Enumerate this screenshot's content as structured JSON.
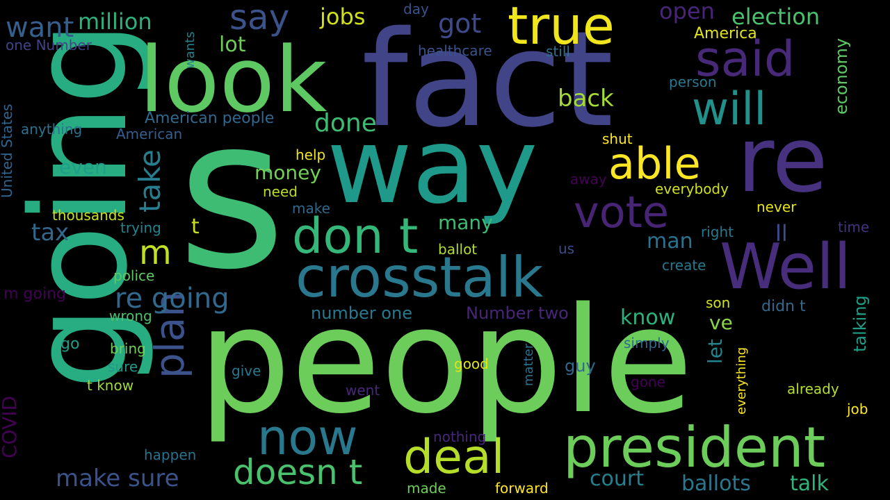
{
  "words": [
    {
      "text": "s",
      "color": "#3fbc73",
      "rotate": false
    },
    {
      "text": "people",
      "color": "#6ccd5a",
      "rotate": false
    },
    {
      "text": "going",
      "color": "#27ad81",
      "rotate": true
    },
    {
      "text": "fact",
      "color": "#414487",
      "rotate": false
    },
    {
      "text": "way",
      "color": "#1f9a8a",
      "rotate": false
    },
    {
      "text": "look",
      "color": "#5ec962",
      "rotate": false
    },
    {
      "text": "re",
      "color": "#46327e",
      "rotate": false
    },
    {
      "text": "Well",
      "color": "#472d7b",
      "rotate": false
    },
    {
      "text": "president",
      "color": "#6ccd5a",
      "rotate": false
    },
    {
      "text": "crosstalk",
      "color": "#2a788e",
      "rotate": false
    },
    {
      "text": "don t",
      "color": "#35b779",
      "rotate": false
    },
    {
      "text": "true",
      "color": "#f1e51d",
      "rotate": false
    },
    {
      "text": "said",
      "color": "#482878",
      "rotate": false
    },
    {
      "text": "vote",
      "color": "#482475",
      "rotate": false
    },
    {
      "text": "deal",
      "color": "#b5de2b",
      "rotate": false
    },
    {
      "text": "now",
      "color": "#2a788e",
      "rotate": false
    },
    {
      "text": "will",
      "color": "#21918c",
      "rotate": false
    },
    {
      "text": "able",
      "color": "#fde725",
      "rotate": false
    },
    {
      "text": "doesn t",
      "color": "#4ac16d",
      "rotate": false
    },
    {
      "text": "plan",
      "color": "#3b528b",
      "rotate": true
    },
    {
      "text": "say",
      "color": "#3b528b",
      "rotate": false
    },
    {
      "text": "m",
      "color": "#c2df23",
      "rotate": false
    },
    {
      "text": "re going",
      "color": "#31688e",
      "rotate": false
    },
    {
      "text": "want",
      "color": "#355f8d",
      "rotate": false
    },
    {
      "text": "jobs",
      "color": "#d0e11c",
      "rotate": false
    },
    {
      "text": "million",
      "color": "#2db27d",
      "rotate": false
    },
    {
      "text": "got",
      "color": "#3e4a89",
      "rotate": false
    },
    {
      "text": "open",
      "color": "#482677",
      "rotate": false
    },
    {
      "text": "election",
      "color": "#4ac16d",
      "rotate": false
    },
    {
      "text": "back",
      "color": "#a5db36",
      "rotate": false
    },
    {
      "text": "done",
      "color": "#3fbc73",
      "rotate": false
    },
    {
      "text": "take",
      "color": "#287d8e",
      "rotate": true
    },
    {
      "text": "lot",
      "color": "#6ece58",
      "rotate": false
    },
    {
      "text": "make sure",
      "color": "#3b528b",
      "rotate": false
    },
    {
      "text": "ballots",
      "color": "#2a788e",
      "rotate": false
    },
    {
      "text": "talk",
      "color": "#2fb47c",
      "rotate": false
    },
    {
      "text": "court",
      "color": "#277f8e",
      "rotate": false
    },
    {
      "text": "know",
      "color": "#2db27d",
      "rotate": false
    },
    {
      "text": "money",
      "color": "#73d056",
      "rotate": false
    },
    {
      "text": "many",
      "color": "#3dbc74",
      "rotate": false
    },
    {
      "text": "man",
      "color": "#2c718e",
      "rotate": false
    },
    {
      "text": "tax",
      "color": "#31688e",
      "rotate": false
    },
    {
      "text": "even",
      "color": "#1f9e89",
      "rotate": false
    },
    {
      "text": "ll",
      "color": "#3e4c8a",
      "rotate": false
    },
    {
      "text": "ve",
      "color": "#8bd646",
      "rotate": false
    },
    {
      "text": "economy",
      "color": "#5ec962",
      "rotate": true
    },
    {
      "text": "talking",
      "color": "#1f9f88",
      "rotate": true
    },
    {
      "text": "let",
      "color": "#25858e",
      "rotate": true
    },
    {
      "text": "COVID",
      "color": "#440154",
      "rotate": true
    },
    {
      "text": "United States",
      "color": "#32658e",
      "rotate": true
    },
    {
      "text": "American people",
      "color": "#31688e",
      "rotate": false
    },
    {
      "text": "t",
      "color": "#c8e020",
      "rotate": false
    },
    {
      "text": "America",
      "color": "#e2e418",
      "rotate": false
    },
    {
      "text": "healthcare",
      "color": "#3b528b",
      "rotate": false
    },
    {
      "text": "person",
      "color": "#2a788e",
      "rotate": false
    },
    {
      "text": "one Number",
      "color": "#414487",
      "rotate": false
    },
    {
      "text": "anything",
      "color": "#2c728e",
      "rotate": false
    },
    {
      "text": "American",
      "color": "#355f8d",
      "rotate": false
    },
    {
      "text": "wants",
      "color": "#25838e",
      "rotate": true
    },
    {
      "text": "day",
      "color": "#3a538b",
      "rotate": false
    },
    {
      "text": "still",
      "color": "#2c728e",
      "rotate": false
    },
    {
      "text": "help",
      "color": "#f1e51d",
      "rotate": false
    },
    {
      "text": "shut",
      "color": "#fde725",
      "rotate": false
    },
    {
      "text": "need",
      "color": "#bade28",
      "rotate": false
    },
    {
      "text": "away",
      "color": "#440154",
      "rotate": false
    },
    {
      "text": "everybody",
      "color": "#d0e11c",
      "rotate": false
    },
    {
      "text": "thousands",
      "color": "#c8e020",
      "rotate": false
    },
    {
      "text": "trying",
      "color": "#25848e",
      "rotate": false
    },
    {
      "text": "make",
      "color": "#31688e",
      "rotate": false
    },
    {
      "text": "never",
      "color": "#e5e419",
      "rotate": false
    },
    {
      "text": "right",
      "color": "#2a788e",
      "rotate": false
    },
    {
      "text": "time",
      "color": "#46327e",
      "rotate": false
    },
    {
      "text": "ballot",
      "color": "#b2dd2d",
      "rotate": false
    },
    {
      "text": "us",
      "color": "#3e4a89",
      "rotate": false
    },
    {
      "text": "create",
      "color": "#2a788e",
      "rotate": false
    },
    {
      "text": "police",
      "color": "#5ec962",
      "rotate": false
    },
    {
      "text": "m going",
      "color": "#440154",
      "rotate": false
    },
    {
      "text": "son",
      "color": "#d2e21b",
      "rotate": false
    },
    {
      "text": "didn t",
      "color": "#31688e",
      "rotate": false
    },
    {
      "text": "number one",
      "color": "#2a788e",
      "rotate": false
    },
    {
      "text": "Number two",
      "color": "#482677",
      "rotate": false
    },
    {
      "text": "wrong",
      "color": "#4ac16d",
      "rotate": false
    },
    {
      "text": "go",
      "color": "#1f9e89",
      "rotate": false
    },
    {
      "text": "bring",
      "color": "#6ece58",
      "rotate": false
    },
    {
      "text": "sure",
      "color": "#1f9a8a",
      "rotate": false
    },
    {
      "text": "t know",
      "color": "#a0da39",
      "rotate": false
    },
    {
      "text": "give",
      "color": "#2a788e",
      "rotate": false
    },
    {
      "text": "simply",
      "color": "#31688e",
      "rotate": false
    },
    {
      "text": "guy",
      "color": "#31688e",
      "rotate": false
    },
    {
      "text": "good",
      "color": "#e2e418",
      "rotate": false
    },
    {
      "text": "everything",
      "color": "#fde725",
      "rotate": true
    },
    {
      "text": "gone",
      "color": "#440154",
      "rotate": false
    },
    {
      "text": "went",
      "color": "#482878",
      "rotate": false
    },
    {
      "text": "matter",
      "color": "#2c728e",
      "rotate": true
    },
    {
      "text": "already",
      "color": "#b5de2b",
      "rotate": false
    },
    {
      "text": "job",
      "color": "#fde725",
      "rotate": false
    },
    {
      "text": "nothing",
      "color": "#482878",
      "rotate": false
    },
    {
      "text": "happen",
      "color": "#2c728e",
      "rotate": false
    },
    {
      "text": "made",
      "color": "#6ece58",
      "rotate": false
    },
    {
      "text": "forward",
      "color": "#fde725",
      "rotate": false
    }
  ]
}
